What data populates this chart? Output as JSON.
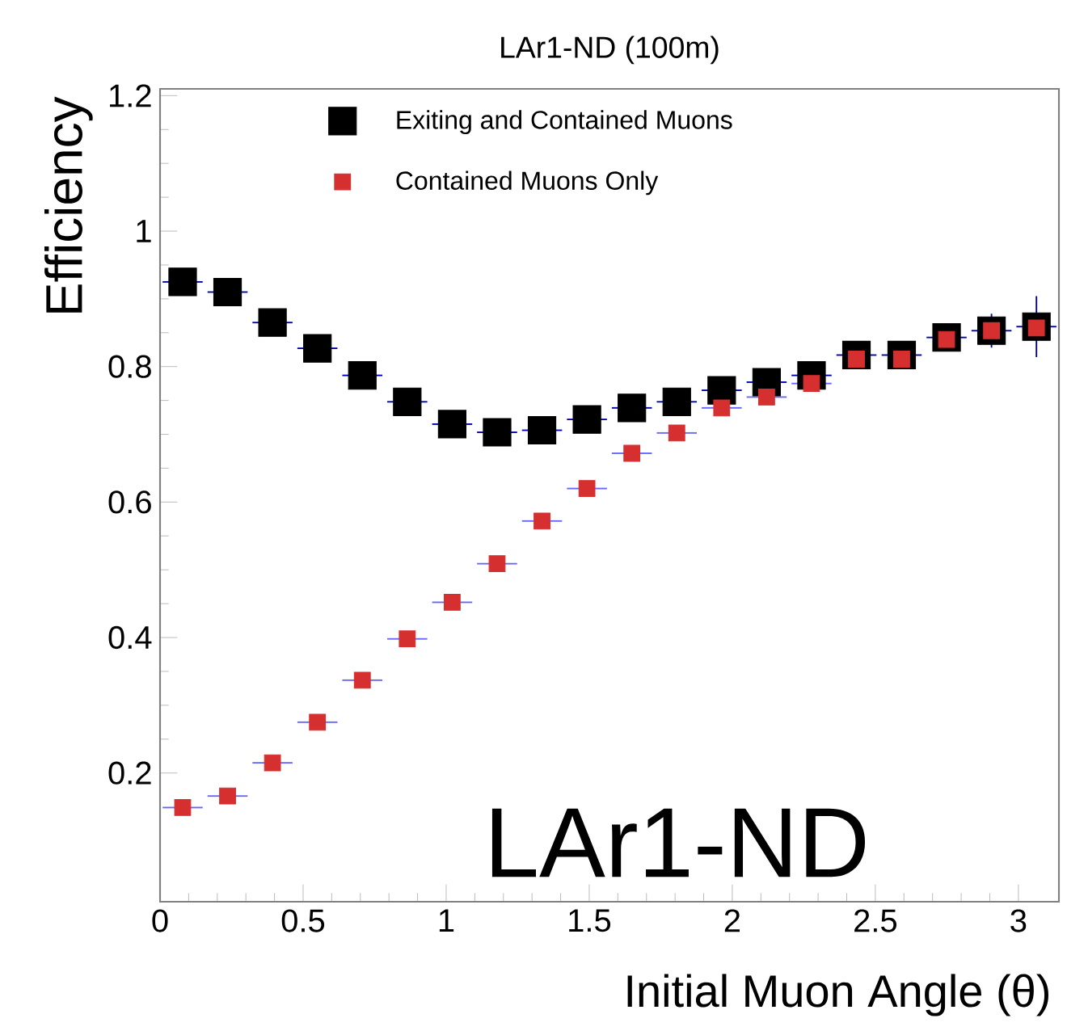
{
  "chart_data": {
    "type": "scatter",
    "title": "LAr1-ND (100m)",
    "xlabel": "Initial Muon Angle  (θ)",
    "ylabel": "Efficiency",
    "annotations": [
      "LAr1-ND"
    ],
    "x": [
      0.079,
      0.236,
      0.393,
      0.55,
      0.707,
      0.864,
      1.021,
      1.178,
      1.335,
      1.492,
      1.649,
      1.806,
      1.963,
      2.12,
      2.277,
      2.434,
      2.592,
      2.749,
      2.906,
      3.063
    ],
    "xlim": [
      0,
      3.1416
    ],
    "ylim": [
      0.01,
      1.21
    ],
    "xticks": [
      0,
      0.5,
      1,
      1.5,
      2,
      2.5,
      3
    ],
    "yticks": [
      0.2,
      0.4,
      0.6,
      0.8,
      1,
      1.2
    ],
    "legend": "top",
    "marker": "square",
    "series": [
      {
        "name": "Exiting and Contained Muons",
        "color": "#000000",
        "values": [
          0.925,
          0.91,
          0.865,
          0.827,
          0.787,
          0.748,
          0.715,
          0.703,
          0.706,
          0.722,
          0.739,
          0.748,
          0.765,
          0.777,
          0.787,
          0.817,
          0.817,
          0.843,
          0.853,
          0.859
        ],
        "errors": [
          null,
          null,
          null,
          null,
          null,
          null,
          null,
          null,
          null,
          null,
          null,
          null,
          null,
          null,
          null,
          null,
          null,
          null,
          0.025,
          0.045
        ],
        "xerrors": [
          0.07,
          0.07,
          0.07,
          0.07,
          0.07,
          0.07,
          0.07,
          0.07,
          0.07,
          0.07,
          0.07,
          0.07,
          0.07,
          0.07,
          0.07,
          0.07,
          0.07,
          0.07,
          0.07,
          0.07
        ]
      },
      {
        "name": "Contained Muons Only",
        "color": "#d62f2f",
        "values": [
          0.149,
          0.166,
          0.215,
          0.275,
          0.337,
          0.398,
          0.452,
          0.509,
          0.572,
          0.62,
          0.672,
          0.702,
          0.739,
          0.755,
          0.775,
          0.811,
          0.811,
          0.84,
          0.853,
          0.857
        ],
        "xerrors": [
          0.07,
          0.07,
          0.07,
          0.07,
          0.07,
          0.07,
          0.07,
          0.07,
          0.07,
          0.07,
          0.07,
          0.07,
          0.07,
          0.07,
          0.07,
          null,
          null,
          null,
          null,
          null
        ]
      }
    ]
  }
}
